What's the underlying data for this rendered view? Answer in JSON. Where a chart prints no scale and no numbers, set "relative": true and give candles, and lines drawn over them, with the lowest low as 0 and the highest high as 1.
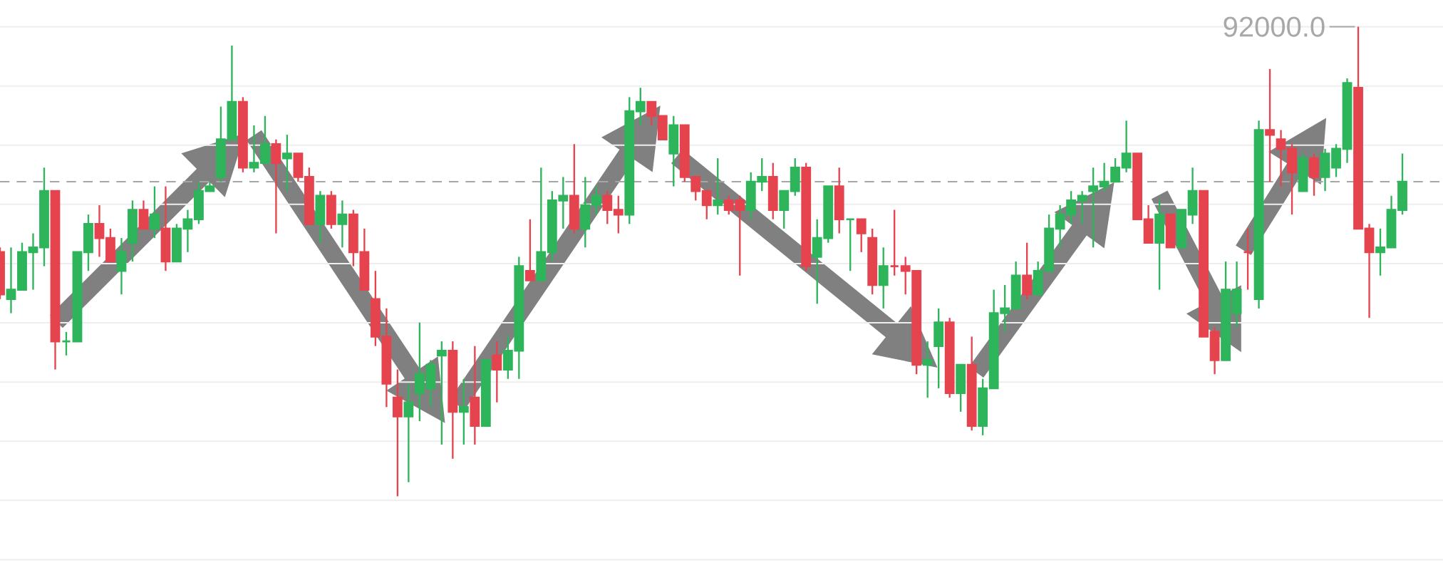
{
  "chart_data": {
    "type": "candlestick",
    "relative": true,
    "grid": "y",
    "categories": [
      null,
      null,
      null,
      null,
      null,
      null,
      null,
      null,
      null,
      null,
      null,
      null,
      null,
      null,
      null,
      null,
      null,
      null,
      null,
      null,
      null,
      null,
      null,
      null,
      null,
      null,
      null,
      null,
      null,
      null,
      null,
      null,
      null,
      null,
      null,
      null,
      null,
      null,
      null,
      null,
      null,
      null,
      null,
      null,
      null,
      null,
      null,
      null,
      null,
      null,
      null,
      null,
      null,
      null,
      null,
      null,
      null,
      null,
      null,
      null,
      null,
      null,
      null,
      null,
      null,
      null,
      null,
      null,
      null,
      null,
      null,
      null,
      null,
      null,
      null,
      null,
      null,
      null,
      null,
      null,
      null,
      null,
      null,
      null,
      null,
      null,
      null,
      null,
      null,
      null,
      null,
      null,
      null,
      null,
      null,
      null,
      null,
      null,
      null,
      null,
      null,
      null,
      null,
      null,
      null,
      null,
      null,
      null,
      null,
      null,
      null,
      null,
      null,
      null,
      null,
      null,
      null,
      null,
      null,
      null,
      null,
      null,
      null,
      null,
      null,
      null,
      null,
      null
    ],
    "ohlc": [
      [
        0.52,
        0.53,
        0.42,
        0.43
      ],
      [
        0.42,
        0.53,
        0.39,
        0.44
      ],
      [
        0.44,
        0.54,
        0.44,
        0.52
      ],
      [
        0.52,
        0.56,
        0.44,
        0.53
      ],
      [
        0.53,
        0.7,
        0.49,
        0.65
      ],
      [
        0.65,
        0.65,
        0.27,
        0.33
      ],
      [
        0.33,
        0.35,
        0.3,
        0.33
      ],
      [
        0.33,
        0.52,
        0.33,
        0.52
      ],
      [
        0.52,
        0.6,
        0.48,
        0.58
      ],
      [
        0.58,
        0.62,
        0.51,
        0.55
      ],
      [
        0.55,
        0.57,
        0.5,
        0.5
      ],
      [
        0.48,
        0.55,
        0.43,
        0.52
      ],
      [
        0.54,
        0.63,
        0.5,
        0.61
      ],
      [
        0.61,
        0.63,
        0.57,
        0.57
      ],
      [
        0.57,
        0.66,
        0.55,
        0.6
      ],
      [
        0.57,
        0.66,
        0.48,
        0.5
      ],
      [
        0.5,
        0.58,
        0.5,
        0.57
      ],
      [
        0.57,
        0.61,
        0.52,
        0.59
      ],
      [
        0.59,
        0.67,
        0.58,
        0.65
      ],
      [
        0.65,
        0.67,
        0.65,
        0.66
      ],
      [
        0.68,
        0.83,
        0.67,
        0.76
      ],
      [
        0.76,
        0.96,
        0.76,
        0.84
      ],
      [
        0.84,
        0.85,
        0.69,
        0.7
      ],
      [
        0.7,
        0.79,
        0.69,
        0.71
      ],
      [
        0.71,
        0.81,
        0.71,
        0.75
      ],
      [
        0.75,
        0.76,
        0.56,
        0.71
      ],
      [
        0.72,
        0.77,
        0.65,
        0.73
      ],
      [
        0.73,
        0.73,
        0.67,
        0.68
      ],
      [
        0.68,
        0.7,
        0.58,
        0.58
      ],
      [
        0.58,
        0.65,
        0.54,
        0.64
      ],
      [
        0.64,
        0.65,
        0.57,
        0.58
      ],
      [
        0.58,
        0.63,
        0.53,
        0.6
      ],
      [
        0.6,
        0.61,
        0.49,
        0.52
      ],
      [
        0.52,
        0.57,
        0.44,
        0.44
      ],
      [
        0.42,
        0.48,
        0.32,
        0.34
      ],
      [
        0.34,
        0.4,
        0.19,
        0.24
      ],
      [
        0.21,
        0.27,
        0,
        0.17
      ],
      [
        0.17,
        0.24,
        0.03,
        0.2
      ],
      [
        0.22,
        0.37,
        0.16,
        0.26
      ],
      [
        0.23,
        0.29,
        0.19,
        0.28
      ],
      [
        0.3,
        0.33,
        0.11,
        0.31
      ],
      [
        0.31,
        0.33,
        0.08,
        0.18
      ],
      [
        0.18,
        0.25,
        0.11,
        0.19
      ],
      [
        0.21,
        0.32,
        0.11,
        0.15
      ],
      [
        0.15,
        0.29,
        0.15,
        0.29
      ],
      [
        0.3,
        0.33,
        0.2,
        0.27
      ],
      [
        0.27,
        0.34,
        0.25,
        0.31
      ],
      [
        0.31,
        0.51,
        0.25,
        0.49
      ],
      [
        0.48,
        0.59,
        0.46,
        0.46
      ],
      [
        0.46,
        0.7,
        0.46,
        0.52
      ],
      [
        0.52,
        0.65,
        0.5,
        0.63
      ],
      [
        0.63,
        0.68,
        0.57,
        0.64
      ],
      [
        0.64,
        0.75,
        0.56,
        0.57
      ],
      [
        0.57,
        0.68,
        0.53,
        0.62
      ],
      [
        0.62,
        0.66,
        0.6,
        0.64
      ],
      [
        0.64,
        0.65,
        0.58,
        0.61
      ],
      [
        0.61,
        0.64,
        0.56,
        0.6
      ],
      [
        0.6,
        0.85,
        0.58,
        0.82
      ],
      [
        0.82,
        0.87,
        0.79,
        0.84
      ],
      [
        0.84,
        0.84,
        0.79,
        0.81
      ],
      [
        0.81,
        0.81,
        0.76,
        0.76
      ],
      [
        0.73,
        0.81,
        0.66,
        0.79
      ],
      [
        0.79,
        0.79,
        0.67,
        0.68
      ],
      [
        0.68,
        0.68,
        0.63,
        0.65
      ],
      [
        0.65,
        0.65,
        0.59,
        0.62
      ],
      [
        0.62,
        0.72,
        0.6,
        0.63
      ],
      [
        0.63,
        0.64,
        0.6,
        0.61
      ],
      [
        0.63,
        0.64,
        0.47,
        0.61
      ],
      [
        0.61,
        0.69,
        0.59,
        0.67
      ],
      [
        0.67,
        0.72,
        0.65,
        0.68
      ],
      [
        0.68,
        0.71,
        0.59,
        0.61
      ],
      [
        0.61,
        0.65,
        0.57,
        0.65
      ],
      [
        0.65,
        0.72,
        0.64,
        0.7
      ],
      [
        0.7,
        0.71,
        0.48,
        0.49
      ],
      [
        0.51,
        0.59,
        0.41,
        0.55
      ],
      [
        0.55,
        0.66,
        0.54,
        0.66
      ],
      [
        0.66,
        0.7,
        0.56,
        0.59
      ],
      [
        0.59,
        0.59,
        0.48,
        0.59
      ],
      [
        0.59,
        0.59,
        0.52,
        0.56
      ],
      [
        0.55,
        0.57,
        0.43,
        0.45
      ],
      [
        0.45,
        0.53,
        0.4,
        0.49
      ],
      [
        0.49,
        0.61,
        0.47,
        0.49
      ],
      [
        0.49,
        0.51,
        0.43,
        0.48
      ],
      [
        0.48,
        0.48,
        0.26,
        0.28
      ],
      [
        0.28,
        0.33,
        0.21,
        0.29
      ],
      [
        0.32,
        0.4,
        0.23,
        0.37
      ],
      [
        0.37,
        0.38,
        0.21,
        0.22
      ],
      [
        0.22,
        0.28,
        0.18,
        0.28
      ],
      [
        0.28,
        0.34,
        0.14,
        0.15
      ],
      [
        0.15,
        0.25,
        0.13,
        0.23
      ],
      [
        0.23,
        0.44,
        0.23,
        0.39
      ],
      [
        0.39,
        0.45,
        0.35,
        0.4
      ],
      [
        0.4,
        0.5,
        0.4,
        0.47
      ],
      [
        0.47,
        0.54,
        0.42,
        0.43
      ],
      [
        0.43,
        0.5,
        0.43,
        0.48
      ],
      [
        0.48,
        0.6,
        0.48,
        0.57
      ],
      [
        0.57,
        0.62,
        0.53,
        0.6
      ],
      [
        0.6,
        0.65,
        0.58,
        0.63
      ],
      [
        0.63,
        0.65,
        0.58,
        0.64
      ],
      [
        0.65,
        0.7,
        0.53,
        0.66
      ],
      [
        0.66,
        0.71,
        0.65,
        0.67
      ],
      [
        0.67,
        0.72,
        0.67,
        0.7
      ],
      [
        0.7,
        0.8,
        0.69,
        0.73
      ],
      [
        0.73,
        0.73,
        0.59,
        0.59
      ],
      [
        0.59,
        0.62,
        0.54,
        0.54
      ],
      [
        0.54,
        0.63,
        0.44,
        0.6
      ],
      [
        0.6,
        0.6,
        0.53,
        0.53
      ],
      [
        0.53,
        0.61,
        0.53,
        0.61
      ],
      [
        0.6,
        0.7,
        0.58,
        0.65
      ],
      [
        0.65,
        0.65,
        0.34,
        0.34
      ],
      [
        0.35,
        0.36,
        0.26,
        0.29
      ],
      [
        0.29,
        0.5,
        0.29,
        0.44
      ],
      [
        0.39,
        0.5,
        0.36,
        0.44
      ],
      [
        0.52,
        0.57,
        0.44,
        0.52
      ],
      [
        0.42,
        0.8,
        0.4,
        0.78
      ],
      [
        0.78,
        0.91,
        0.67,
        0.77
      ],
      [
        0.76,
        0.78,
        0.66,
        0.74
      ],
      [
        0.74,
        0.75,
        0.6,
        0.69
      ],
      [
        0.65,
        0.73,
        0.65,
        0.72
      ],
      [
        0.72,
        0.73,
        0.64,
        0.68
      ],
      [
        0.68,
        0.74,
        0.65,
        0.73
      ],
      [
        0.7,
        0.75,
        0.68,
        0.74
      ],
      [
        0.74,
        0.89,
        0.71,
        0.88
      ],
      [
        0.87,
        1,
        0.57,
        0.57
      ],
      [
        0.57,
        0.58,
        0.38,
        0.52
      ],
      [
        0.52,
        0.57,
        0.47,
        0.53
      ],
      [
        0.53,
        0.64,
        0.53,
        0.61
      ],
      [
        0.61,
        0.73,
        0.6,
        0.67
      ]
    ],
    "colors": [
      "#e5434e",
      "#2eb45a",
      "#2eb45a",
      "#2eb45a",
      "#2eb45a",
      "#e5434e",
      "#2eb45a",
      "#2eb45a",
      "#2eb45a",
      "#e5434e",
      "#e5434e",
      "#2eb45a",
      "#2eb45a",
      "#e5434e",
      "#2eb45a",
      "#e5434e",
      "#2eb45a",
      "#2eb45a",
      "#2eb45a",
      "#2eb45a",
      "#2eb45a",
      "#2eb45a",
      "#e5434e",
      "#2eb45a",
      "#2eb45a",
      "#e5434e",
      "#2eb45a",
      "#e5434e",
      "#e5434e",
      "#2eb45a",
      "#e5434e",
      "#2eb45a",
      "#e5434e",
      "#e5434e",
      "#e5434e",
      "#e5434e",
      "#e5434e",
      "#2eb45a",
      "#2eb45a",
      "#2eb45a",
      "#2eb45a",
      "#e5434e",
      "#2eb45a",
      "#e5434e",
      "#2eb45a",
      "#e5434e",
      "#2eb45a",
      "#2eb45a",
      "#e5434e",
      "#2eb45a",
      "#2eb45a",
      "#2eb45a",
      "#e5434e",
      "#2eb45a",
      "#2eb45a",
      "#e5434e",
      "#e5434e",
      "#2eb45a",
      "#2eb45a",
      "#e5434e",
      "#e5434e",
      "#2eb45a",
      "#e5434e",
      "#e5434e",
      "#e5434e",
      "#2eb45a",
      "#e5434e",
      "#e5434e",
      "#2eb45a",
      "#2eb45a",
      "#e5434e",
      "#2eb45a",
      "#2eb45a",
      "#e5434e",
      "#2eb45a",
      "#2eb45a",
      "#e5434e",
      "#2eb45a",
      "#e5434e",
      "#e5434e",
      "#2eb45a",
      "#e5434e",
      "#e5434e",
      "#e5434e",
      "#2eb45a",
      "#2eb45a",
      "#e5434e",
      "#2eb45a",
      "#e5434e",
      "#2eb45a",
      "#2eb45a",
      "#2eb45a",
      "#2eb45a",
      "#e5434e",
      "#2eb45a",
      "#2eb45a",
      "#2eb45a",
      "#2eb45a",
      "#2eb45a",
      "#2eb45a",
      "#2eb45a",
      "#2eb45a",
      "#2eb45a",
      "#e5434e",
      "#e5434e",
      "#2eb45a",
      "#e5434e",
      "#2eb45a",
      "#2eb45a",
      "#e5434e",
      "#e5434e",
      "#2eb45a",
      "#2eb45a",
      "#e5434e",
      "#2eb45a",
      "#e5434e",
      "#e5434e",
      "#e5434e",
      "#2eb45a",
      "#e5434e",
      "#2eb45a",
      "#2eb45a",
      "#2eb45a",
      "#e5434e",
      "#e5434e",
      "#2eb45a",
      "#2eb45a",
      "#2eb45a"
    ],
    "ref_lines": [
      {
        "axis": "y",
        "value": 0.67,
        "color": "#a6a6a6",
        "line_style": "dashed"
      }
    ],
    "annotations": [
      "92000.0"
    ]
  }
}
